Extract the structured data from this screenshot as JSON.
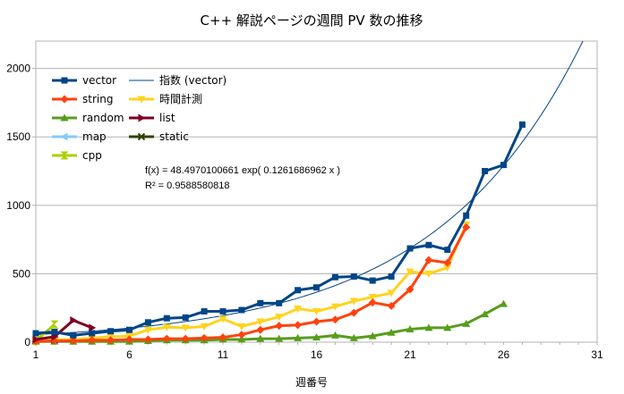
{
  "chart_data": {
    "type": "line",
    "title": "C++ 解説ページの週間 PV 数の推移",
    "xlabel": "週番号",
    "ylabel": "",
    "xlim": [
      1,
      31
    ],
    "ylim": [
      0,
      2200
    ],
    "xticks": [
      1,
      6,
      11,
      16,
      21,
      26,
      31
    ],
    "yticks": [
      0,
      500,
      1000,
      1500,
      2000
    ],
    "grid": true,
    "legend_position": "top-left",
    "series": [
      {
        "name": "vector",
        "color": "#004586",
        "marker": "square",
        "x": [
          1,
          2,
          3,
          4,
          5,
          6,
          7,
          8,
          9,
          10,
          11,
          12,
          13,
          14,
          15,
          16,
          17,
          18,
          19,
          20,
          21,
          22,
          23,
          24,
          25,
          26,
          27
        ],
        "y": [
          65,
          75,
          50,
          65,
          80,
          90,
          145,
          175,
          180,
          225,
          225,
          235,
          285,
          285,
          380,
          400,
          475,
          480,
          450,
          480,
          685,
          710,
          675,
          925,
          1250,
          1295,
          1590
        ]
      },
      {
        "name": "string",
        "color": "#ff420e",
        "marker": "diamond",
        "x": [
          1,
          2,
          3,
          4,
          5,
          6,
          7,
          8,
          9,
          10,
          11,
          12,
          13,
          14,
          15,
          16,
          17,
          18,
          19,
          20,
          21,
          22,
          23,
          24
        ],
        "y": [
          5,
          10,
          10,
          15,
          15,
          20,
          20,
          25,
          25,
          30,
          35,
          55,
          90,
          120,
          125,
          150,
          165,
          215,
          290,
          265,
          385,
          600,
          580,
          840
        ]
      },
      {
        "name": "random",
        "color": "#579d1c",
        "marker": "triangle-up",
        "x": [
          1,
          2,
          3,
          4,
          5,
          6,
          7,
          8,
          9,
          10,
          11,
          12,
          13,
          14,
          15,
          16,
          17,
          18,
          19,
          20,
          21,
          22,
          23,
          24,
          25,
          26
        ],
        "y": [
          5,
          5,
          5,
          5,
          5,
          5,
          10,
          15,
          15,
          15,
          20,
          20,
          25,
          25,
          30,
          35,
          50,
          30,
          45,
          70,
          95,
          105,
          105,
          135,
          205,
          280
        ]
      },
      {
        "name": "map",
        "color": "#83caff",
        "marker": "triangle-left",
        "x": [
          1,
          2
        ],
        "y": [
          10,
          10
        ]
      },
      {
        "name": "cpp",
        "color": "#aecf00",
        "marker": "hourglass",
        "x": [
          1,
          2
        ],
        "y": [
          10,
          130
        ]
      },
      {
        "name": "時間計測",
        "color": "#ffd320",
        "marker": "triangle-down",
        "x": [
          1,
          2,
          3,
          4,
          5,
          6,
          7,
          8,
          9,
          10,
          11,
          12,
          13,
          14,
          15,
          16,
          17,
          18,
          19,
          20,
          21,
          22,
          23,
          24
        ],
        "y": [
          10,
          20,
          20,
          30,
          40,
          45,
          90,
          110,
          105,
          115,
          170,
          115,
          150,
          185,
          245,
          225,
          260,
          300,
          330,
          360,
          515,
          500,
          545,
          860
        ]
      },
      {
        "name": "list",
        "color": "#7e0021",
        "marker": "triangle-right",
        "x": [
          1,
          2,
          3,
          4
        ],
        "y": [
          20,
          40,
          160,
          105
        ]
      },
      {
        "name": "static",
        "color": "#314004",
        "marker": "x",
        "x": [
          1,
          2
        ],
        "y": [
          10,
          15
        ]
      }
    ],
    "trendline": {
      "name": "指数 (vector)",
      "color": "#004586",
      "equation": "f(x) = 48.4970100661 exp( 0.1261686962 x )",
      "r_squared": "R² = 0.9588580818",
      "a": 48.4970100661,
      "b": 0.1261686962
    },
    "legend_order": [
      "vector",
      "指数 (vector)",
      "string",
      "時間計測",
      "random",
      "list",
      "map",
      "static",
      "cpp"
    ]
  }
}
